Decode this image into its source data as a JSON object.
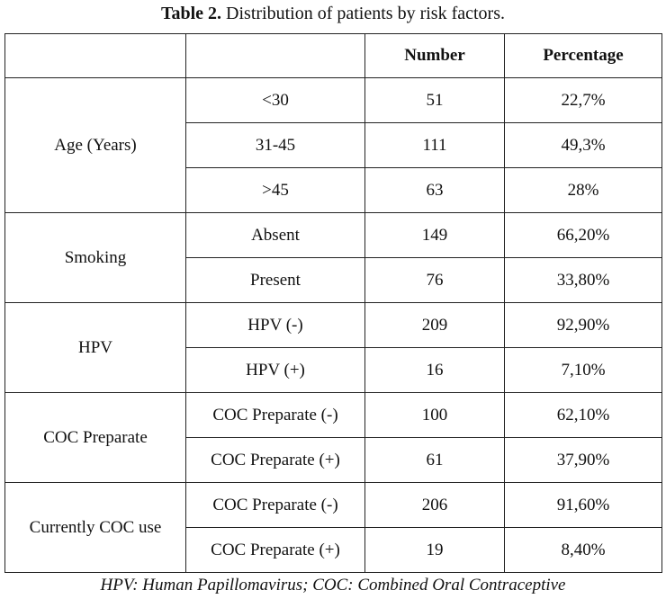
{
  "caption": {
    "label": "Table 2.",
    "text": "Distribution of patients by risk factors."
  },
  "table": {
    "headers": [
      "",
      "",
      "Number",
      "Percentage"
    ],
    "groups": [
      {
        "name": "Age (Years)",
        "rows": [
          {
            "sub": "<30",
            "number": "51",
            "percentage": "22,7%"
          },
          {
            "sub": "31-45",
            "number": "111",
            "percentage": "49,3%"
          },
          {
            "sub": ">45",
            "number": "63",
            "percentage": "28%"
          }
        ]
      },
      {
        "name": "Smoking",
        "rows": [
          {
            "sub": "Absent",
            "number": "149",
            "percentage": "66,20%"
          },
          {
            "sub": "Present",
            "number": "76",
            "percentage": "33,80%"
          }
        ]
      },
      {
        "name": "HPV",
        "rows": [
          {
            "sub": "HPV (-)",
            "number": "209",
            "percentage": "92,90%"
          },
          {
            "sub": "HPV (+)",
            "number": "16",
            "percentage": "7,10%"
          }
        ]
      },
      {
        "name": "COC Preparate",
        "rows": [
          {
            "sub": "COC Preparate (-)",
            "number": "100",
            "percentage": "62,10%"
          },
          {
            "sub": "COC Preparate (+)",
            "number": "61",
            "percentage": "37,90%"
          }
        ]
      },
      {
        "name": "Currently COC use",
        "rows": [
          {
            "sub": "COC Preparate (-)",
            "number": "206",
            "percentage": "91,60%"
          },
          {
            "sub": "COC Preparate (+)",
            "number": "19",
            "percentage": "8,40%"
          }
        ]
      }
    ]
  },
  "footnote": "HPV: Human Papillomavirus; COC: Combined Oral Contraceptive"
}
